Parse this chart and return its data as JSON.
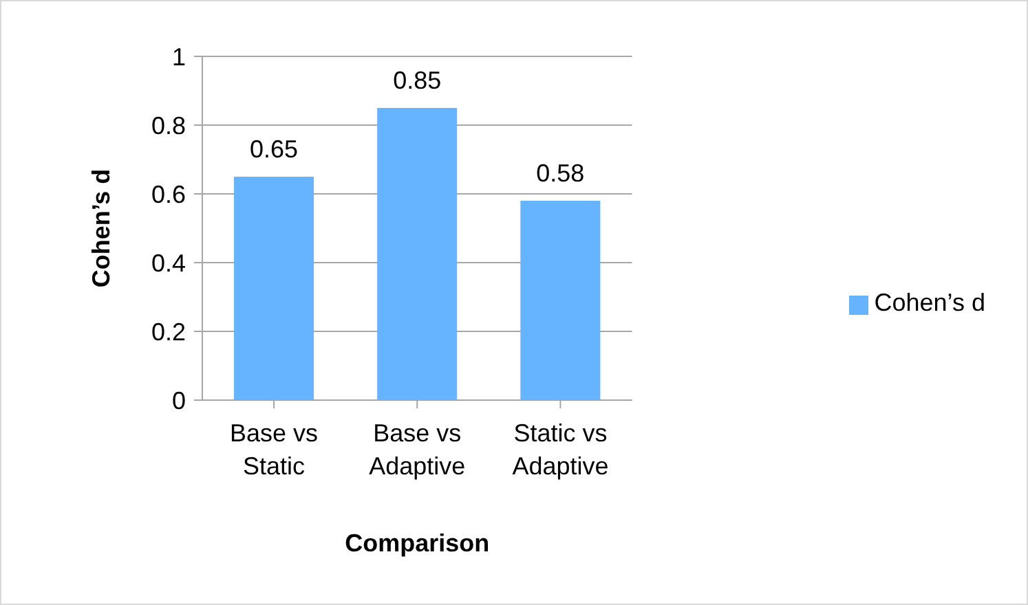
{
  "chart_data": {
    "type": "bar",
    "xlabel": "Comparison",
    "ylabel": "Cohen’s d",
    "categories": [
      "Base vs Static",
      "Base vs Adaptive",
      "Static vs Adaptive"
    ],
    "series": [
      {
        "name": "Cohen’s d",
        "color": "#66b3ff",
        "values": [
          0.65,
          0.85,
          0.58
        ]
      }
    ],
    "ylim": [
      0,
      1
    ],
    "yticks": [
      0,
      0.2,
      0.4,
      0.6,
      0.8,
      1
    ],
    "grid": "y",
    "legend": "right",
    "data_labels": true
  }
}
